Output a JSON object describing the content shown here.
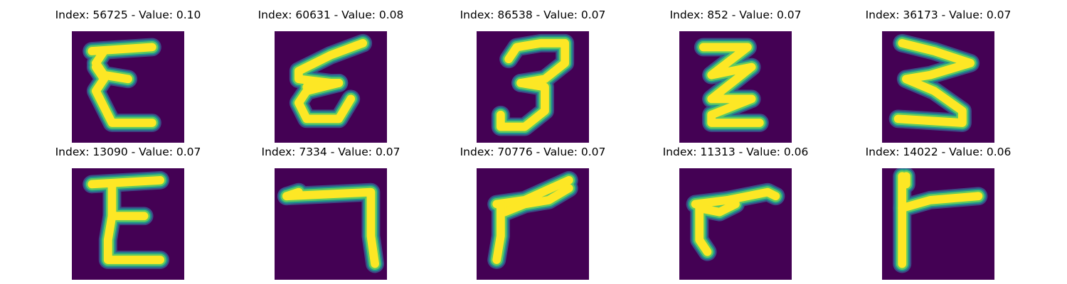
{
  "colors": {
    "background": "#440154",
    "stroke_core": "#fde725",
    "stroke_mid": "#5ec962",
    "stroke_edge": "#21918c",
    "stroke_faint": "#3b528b"
  },
  "panels": [
    {
      "title": "Index: 56725 - Value: 0.10",
      "glyph": "E",
      "strokes": [
        [
          [
            5,
            5
          ],
          [
            20,
            4
          ]
        ],
        [
          [
            8,
            5
          ],
          [
            6,
            8
          ],
          [
            8,
            11
          ],
          [
            14,
            12
          ]
        ],
        [
          [
            8,
            12
          ],
          [
            6,
            15
          ],
          [
            8,
            19
          ],
          [
            10,
            23
          ],
          [
            20,
            23
          ]
        ],
        [
          [
            8,
            12
          ],
          [
            6,
            9
          ]
        ]
      ]
    },
    {
      "title": "Index: 60631 - Value: 0.08",
      "glyph": "E",
      "strokes": [
        [
          [
            22,
            3
          ],
          [
            14,
            6
          ],
          [
            6,
            10
          ],
          [
            6,
            12
          ],
          [
            14,
            13
          ],
          [
            16,
            13
          ]
        ],
        [
          [
            16,
            13
          ],
          [
            8,
            15
          ],
          [
            6,
            18
          ],
          [
            8,
            22
          ],
          [
            16,
            22
          ],
          [
            19,
            17
          ]
        ],
        [
          [
            16,
            13
          ],
          [
            8,
            14
          ]
        ]
      ]
    },
    {
      "title": "Index: 86538 - Value: 0.07",
      "glyph": "3",
      "strokes": [
        [
          [
            8,
            7
          ],
          [
            10,
            4
          ],
          [
            16,
            3
          ],
          [
            22,
            3
          ],
          [
            22,
            8
          ],
          [
            17,
            12
          ],
          [
            11,
            13
          ]
        ],
        [
          [
            11,
            13
          ],
          [
            17,
            14
          ],
          [
            17,
            20
          ],
          [
            12,
            24
          ],
          [
            6,
            24
          ],
          [
            6,
            21
          ]
        ]
      ]
    },
    {
      "title": "Index: 852 - Value: 0.07",
      "glyph": "Z",
      "strokes": [
        [
          [
            6,
            4
          ],
          [
            17,
            4
          ],
          [
            8,
            11
          ],
          [
            18,
            9
          ],
          [
            8,
            17
          ],
          [
            18,
            17
          ],
          [
            8,
            21
          ],
          [
            8,
            23
          ],
          [
            20,
            23
          ]
        ]
      ]
    },
    {
      "title": "Index: 36173 - Value: 0.07",
      "glyph": "3",
      "strokes": [
        [
          [
            5,
            3
          ],
          [
            13,
            5
          ],
          [
            22,
            8
          ],
          [
            12,
            11
          ],
          [
            6,
            12
          ],
          [
            13,
            15
          ],
          [
            20,
            20
          ],
          [
            20,
            23
          ],
          [
            4,
            22
          ]
        ]
      ]
    },
    {
      "title": "Index: 13090 - Value: 0.07",
      "glyph": "E",
      "strokes": [
        [
          [
            5,
            4
          ],
          [
            22,
            3
          ]
        ],
        [
          [
            10,
            4
          ],
          [
            10,
            12
          ],
          [
            9,
            18
          ],
          [
            9,
            23
          ],
          [
            22,
            23
          ]
        ],
        [
          [
            10,
            12
          ],
          [
            18,
            12
          ]
        ]
      ]
    },
    {
      "title": "Index: 7334 - Value: 0.07",
      "glyph": "7",
      "strokes": [
        [
          [
            3,
            7
          ],
          [
            24,
            6
          ],
          [
            24,
            17
          ],
          [
            25,
            24
          ]
        ],
        [
          [
            3,
            7
          ],
          [
            6,
            6
          ]
        ]
      ]
    },
    {
      "title": "Index: 70776 - Value: 0.07",
      "glyph": "r",
      "strokes": [
        [
          [
            5,
            9
          ],
          [
            12,
            8
          ],
          [
            23,
            3
          ]
        ],
        [
          [
            6,
            9
          ],
          [
            7,
            11
          ],
          [
            12,
            9
          ],
          [
            18,
            8
          ],
          [
            23,
            5
          ]
        ],
        [
          [
            6,
            10
          ],
          [
            6,
            17
          ],
          [
            5,
            23
          ]
        ]
      ]
    },
    {
      "title": "Index: 11313 - Value: 0.06",
      "glyph": "r",
      "strokes": [
        [
          [
            4,
            9
          ],
          [
            12,
            8
          ],
          [
            22,
            6
          ],
          [
            24,
            7
          ]
        ],
        [
          [
            5,
            9
          ],
          [
            5,
            18
          ],
          [
            7,
            21
          ]
        ],
        [
          [
            5,
            10
          ],
          [
            10,
            11
          ],
          [
            14,
            9
          ]
        ]
      ]
    },
    {
      "title": "Index: 14022 - Value: 0.06",
      "glyph": "F",
      "strokes": [
        [
          [
            5,
            2
          ],
          [
            5,
            12
          ],
          [
            5,
            24
          ]
        ],
        [
          [
            6,
            2
          ],
          [
            6,
            4
          ]
        ],
        [
          [
            5,
            10
          ],
          [
            12,
            8
          ],
          [
            24,
            7
          ]
        ]
      ]
    }
  ]
}
